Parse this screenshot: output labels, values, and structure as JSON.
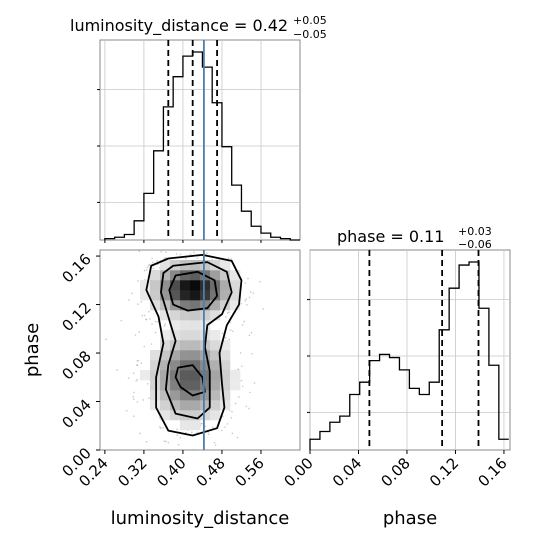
{
  "chart_data": {
    "type": "corner",
    "parameters": [
      "luminosity_distance",
      "phase"
    ],
    "truth": {
      "luminosity_distance": 0.443,
      "phase": null
    },
    "panels": [
      {
        "type": "histogram",
        "param": "luminosity_distance",
        "title": {
          "main": "luminosity_distance = 0.42",
          "plus": "+0.05",
          "minus": "−0.05"
        },
        "xlim": [
          0.23,
          0.64
        ],
        "grid": true,
        "bins": [
          0.24,
          0.26,
          0.28,
          0.3,
          0.32,
          0.34,
          0.36,
          0.38,
          0.4,
          0.42,
          0.44,
          0.46,
          0.48,
          0.5,
          0.52,
          0.54,
          0.56,
          0.58,
          0.6,
          0.62
        ],
        "counts": [
          1,
          2,
          4,
          14,
          34,
          65,
          97,
          119,
          134,
          137,
          126,
          100,
          68,
          40,
          21,
          10,
          5,
          2,
          1,
          0
        ],
        "quantiles": [
          0.37,
          0.42,
          0.47
        ]
      },
      {
        "type": "density",
        "param_x": "luminosity_distance",
        "param_y": "phase",
        "xlim": [
          0.23,
          0.64
        ],
        "ylim": [
          0.0,
          0.165
        ],
        "xticks": [
          "0.24",
          "0.32",
          "0.40",
          "0.48",
          "0.56"
        ],
        "yticks": [
          "0.00",
          "0.04",
          "0.08",
          "0.12",
          "0.16"
        ],
        "xlabel": "luminosity_distance",
        "ylabel": "phase",
        "modes": [
          {
            "x": 0.42,
            "y": 0.133,
            "sx": 0.045,
            "sy": 0.012,
            "weight": 0.6
          },
          {
            "x": 0.415,
            "y": 0.06,
            "sx": 0.045,
            "sy": 0.02,
            "weight": 0.4
          }
        ]
      },
      {
        "type": "histogram",
        "param": "phase",
        "title": {
          "main": "phase = 0.11",
          "plus": "+0.03",
          "minus": "−0.06"
        },
        "xlim": [
          0.0,
          0.165
        ],
        "grid": true,
        "xticks": [
          "0.00",
          "0.04",
          "0.08",
          "0.12",
          "0.16"
        ],
        "xlabel": "phase",
        "bins": [
          0.0,
          0.0082,
          0.0164,
          0.0246,
          0.0328,
          0.041,
          0.0492,
          0.0574,
          0.0656,
          0.0738,
          0.082,
          0.0902,
          0.0984,
          0.1066,
          0.1148,
          0.123,
          0.1312,
          0.1394,
          0.1476,
          0.1558
        ],
        "counts": [
          7,
          12,
          18,
          22,
          36,
          44,
          58,
          62,
          60,
          52,
          40,
          36,
          44,
          78,
          105,
          120,
          122,
          92,
          55,
          7
        ],
        "quantiles": [
          0.049,
          0.109,
          0.139
        ]
      }
    ]
  }
}
